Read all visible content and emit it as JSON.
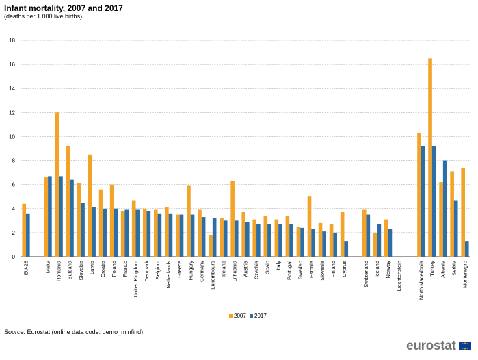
{
  "header": {
    "title": "Infant mortality, 2007 and 2017",
    "subtitle": "(deaths per 1 000 live births)"
  },
  "footer": {
    "source_label": "Source:",
    "source_text": "Eurostat (online data code: demo_minfind)",
    "logo_text": "eurostat"
  },
  "colors": {
    "s2007": "#f3a327",
    "s2017": "#2e6ea6",
    "grid": "#b3b3b3"
  },
  "chart_data": {
    "type": "bar",
    "title": "Infant mortality, 2007 and 2017",
    "subtitle": "(deaths per 1 000 live births)",
    "ylim": [
      0,
      18
    ],
    "yticks": [
      0,
      2,
      4,
      6,
      8,
      10,
      12,
      14,
      16,
      18
    ],
    "grid": true,
    "legend": "bottom-center",
    "categories": [
      "EU-28",
      "",
      "Malta",
      "Romania",
      "Bulgaria",
      "Slovakia",
      "Latvia",
      "Croatia",
      "Poland",
      "France",
      "United Kingdom",
      "Denmark",
      "Belgium",
      "Netherlands",
      "Greece",
      "Hungary",
      "Germany",
      "Luxembourg",
      "Ireland",
      "Lithuania",
      "Austria",
      "Czechia",
      "Spain",
      "Italy",
      "Portugal",
      "Sweden",
      "Estonia",
      "Slovenia",
      "Finland",
      "Cyprus",
      "",
      "Switzerland",
      "Iceland",
      "Norway",
      "Liechtenstein",
      "",
      "North Macedonia",
      "Turkey",
      "Albania",
      "Serbia",
      "Montenegro"
    ],
    "series": [
      {
        "name": "2007",
        "values": [
          4.4,
          null,
          6.6,
          12.0,
          9.2,
          6.1,
          8.5,
          5.6,
          6.0,
          3.8,
          4.7,
          4.0,
          3.9,
          4.1,
          3.5,
          5.9,
          3.9,
          1.8,
          3.2,
          6.3,
          3.7,
          3.1,
          3.4,
          3.1,
          3.4,
          2.5,
          5.0,
          2.8,
          2.7,
          3.7,
          null,
          3.9,
          2.0,
          3.1,
          null,
          null,
          10.3,
          16.5,
          6.2,
          7.1,
          7.4
        ]
      },
      {
        "name": "2017",
        "values": [
          3.6,
          null,
          6.7,
          6.7,
          6.4,
          4.5,
          4.1,
          4.0,
          4.0,
          3.9,
          3.9,
          3.8,
          3.6,
          3.6,
          3.5,
          3.5,
          3.3,
          3.2,
          3.0,
          3.0,
          2.9,
          2.7,
          2.7,
          2.7,
          2.7,
          2.4,
          2.3,
          2.1,
          2.0,
          1.3,
          null,
          3.5,
          2.7,
          2.3,
          null,
          null,
          9.2,
          9.2,
          8.0,
          4.7,
          1.3
        ]
      }
    ]
  }
}
